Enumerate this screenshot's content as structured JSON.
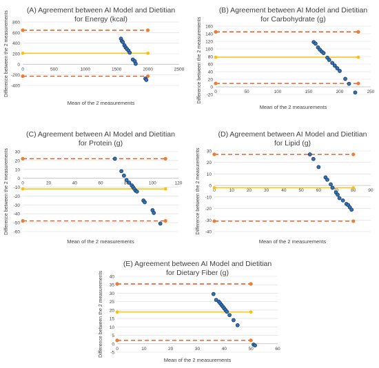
{
  "colors": {
    "mean_line": "#ffc000",
    "limit_line": "#e0571a",
    "limit_marker": "#ed7d31",
    "point_fill": "#2e75b6",
    "point_stroke": "#1f3864",
    "grid": "#d9d9d9",
    "text": "#404040"
  },
  "chart_data": [
    {
      "type": "scatter",
      "title": "(A) Agreement between AI Model and Dietitian",
      "subtitle": "for Energy (kcal)",
      "xlabel": "Mean of the 2 measurements",
      "ylabel": "Difference between the 2 measurements",
      "xlim": [
        0,
        2500
      ],
      "ylim": [
        -400,
        800
      ],
      "xticks": [
        0,
        500,
        1000,
        1500,
        2000,
        2500
      ],
      "yticks": [
        -400,
        -200,
        0,
        200,
        400,
        600,
        800
      ],
      "grid": "horizontal",
      "line_span": [
        0,
        2000
      ],
      "mean_difference": 210,
      "upper_limit": 645,
      "lower_limit": -225,
      "points": [
        [
          1570,
          485
        ],
        [
          1585,
          440
        ],
        [
          1600,
          420
        ],
        [
          1625,
          360
        ],
        [
          1645,
          320
        ],
        [
          1665,
          290
        ],
        [
          1690,
          260
        ],
        [
          1710,
          220
        ],
        [
          1760,
          90
        ],
        [
          1790,
          60
        ],
        [
          1805,
          10
        ],
        [
          1960,
          -270
        ],
        [
          1975,
          -295
        ]
      ]
    },
    {
      "type": "scatter",
      "title": "(B) Agreement between AI Model and Dietitian",
      "subtitle": "for Carbohydrate (g)",
      "xlabel": "Mean of the 2 measurements",
      "ylabel": "Difference between the 2 measurements",
      "xlim": [
        0,
        250
      ],
      "ylim": [
        -20,
        160
      ],
      "xticks": [
        0,
        50,
        100,
        150,
        200,
        250
      ],
      "yticks": [
        -20,
        0,
        20,
        40,
        60,
        80,
        100,
        120,
        140,
        160
      ],
      "grid": "horizontal",
      "line_span": [
        0,
        230
      ],
      "mean_difference": 78,
      "upper_limit": 145,
      "lower_limit": 9,
      "points": [
        [
          158,
          118
        ],
        [
          161,
          114
        ],
        [
          165,
          104
        ],
        [
          168,
          98
        ],
        [
          171,
          93
        ],
        [
          174,
          89
        ],
        [
          180,
          77
        ],
        [
          183,
          71
        ],
        [
          188,
          63
        ],
        [
          192,
          56
        ],
        [
          196,
          49
        ],
        [
          200,
          42
        ],
        [
          209,
          21
        ],
        [
          215,
          8
        ],
        [
          225,
          -15
        ]
      ]
    },
    {
      "type": "scatter",
      "title": "(C) Agreement between AI Model and Dietitian",
      "subtitle": "for Protein (g)",
      "xlabel": "Mean of the 2 measurements",
      "ylabel": "Difference between the 2 measurements",
      "xlim": [
        0,
        120
      ],
      "ylim": [
        -60,
        30
      ],
      "xticks": [
        0,
        20,
        40,
        60,
        80,
        100,
        120
      ],
      "yticks": [
        -60,
        -50,
        -40,
        -30,
        -20,
        -10,
        0,
        10,
        20,
        30
      ],
      "grid": "horizontal",
      "line_span": [
        0,
        110
      ],
      "mean_difference": -12,
      "upper_limit": 22,
      "lower_limit": -48,
      "points": [
        [
          71,
          22
        ],
        [
          76,
          8
        ],
        [
          78,
          3
        ],
        [
          80,
          -2
        ],
        [
          82,
          -5
        ],
        [
          84,
          -8
        ],
        [
          85,
          -10
        ],
        [
          86,
          -12
        ],
        [
          87,
          -14
        ],
        [
          88,
          -15
        ],
        [
          93,
          -25
        ],
        [
          94,
          -27
        ],
        [
          100,
          -36
        ],
        [
          101,
          -39
        ],
        [
          106,
          -51
        ]
      ]
    },
    {
      "type": "scatter",
      "title": "(D) Agreement between AI Model and Dietitian",
      "subtitle": "for Lipid (g)",
      "xlabel": "Mean of the 2 measurements",
      "ylabel": "Difference between the 2 measurements",
      "xlim": [
        0,
        90
      ],
      "ylim": [
        -40,
        30
      ],
      "xticks": [
        0,
        10,
        20,
        30,
        40,
        50,
        60,
        70,
        80,
        90
      ],
      "yticks": [
        -40,
        -30,
        -20,
        -10,
        0,
        10,
        20,
        30
      ],
      "grid": "horizontal",
      "line_span": [
        0,
        80
      ],
      "mean_difference": -2,
      "upper_limit": 27,
      "lower_limit": -31,
      "points": [
        [
          55,
          27
        ],
        [
          57,
          23
        ],
        [
          60,
          16
        ],
        [
          64,
          7
        ],
        [
          65,
          5
        ],
        [
          67,
          1
        ],
        [
          68,
          -2
        ],
        [
          70,
          -6
        ],
        [
          71,
          -8
        ],
        [
          72,
          -11
        ],
        [
          74,
          -13
        ],
        [
          76,
          -16
        ],
        [
          77,
          -17
        ],
        [
          78,
          -19
        ],
        [
          79,
          -21
        ]
      ]
    },
    {
      "type": "scatter",
      "title": "(E) Agreement between AI Model and Dietitian",
      "subtitle": "for Dietary Fiber (g)",
      "xlabel": "Mean of the 2 measurements",
      "ylabel": "Difference between the 2 measurements",
      "xlim": [
        0,
        60
      ],
      "ylim": [
        -5,
        40
      ],
      "xticks": [
        0,
        10,
        20,
        30,
        40,
        50,
        60
      ],
      "yticks": [
        -5,
        0,
        5,
        10,
        15,
        20,
        25,
        30,
        35,
        40
      ],
      "grid": "horizontal",
      "line_span": [
        0,
        50
      ],
      "mean_difference": 18.8,
      "upper_limit": 35.5,
      "lower_limit": 2,
      "points": [
        [
          36,
          29.5
        ],
        [
          37,
          26
        ],
        [
          38,
          25
        ],
        [
          38.5,
          24
        ],
        [
          39,
          23
        ],
        [
          39.5,
          22
        ],
        [
          40,
          21
        ],
        [
          40.5,
          20
        ],
        [
          41,
          19
        ],
        [
          42,
          17
        ],
        [
          43.5,
          14
        ],
        [
          45,
          11
        ],
        [
          51,
          -0.5
        ],
        [
          51.5,
          -1
        ]
      ]
    }
  ]
}
